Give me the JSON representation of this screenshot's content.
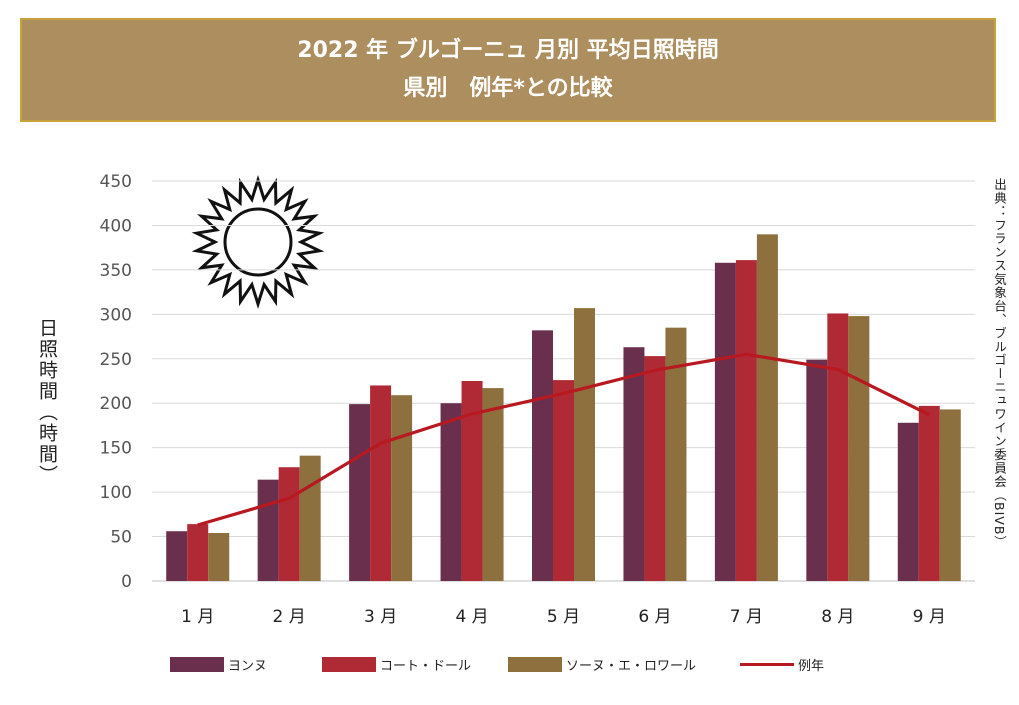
{
  "title": {
    "line1": "2022 年 ブルゴーニュ 月別 平均日照時間",
    "line2": "県別　例年*との比較"
  },
  "source": "出典：フランス気象台、ブルゴーニュワイン委員会（BIVB）",
  "sun_icon": "sun-icon",
  "chart_data": {
    "type": "bar",
    "categories": [
      "1 月",
      "2 月",
      "3 月",
      "4 月",
      "5 月",
      "6 月",
      "7 月",
      "8 月",
      "9 月"
    ],
    "ylabel": "日照時間（時間）",
    "ylim": [
      0,
      450
    ],
    "yticks": [
      0,
      50,
      100,
      150,
      200,
      250,
      300,
      350,
      400,
      450
    ],
    "grid": true,
    "legend_position": "bottom",
    "series": [
      {
        "name": "ヨンヌ",
        "type": "bar",
        "color": "#6b2f4e",
        "values": [
          56,
          114,
          199,
          200,
          282,
          263,
          358,
          249,
          178
        ]
      },
      {
        "name": "コート・ドール",
        "type": "bar",
        "color": "#b02a35",
        "values": [
          64,
          128,
          220,
          225,
          226,
          253,
          361,
          301,
          197
        ]
      },
      {
        "name": "ソーヌ・エ・ロワール",
        "type": "bar",
        "color": "#8e6f3e",
        "values": [
          54,
          141,
          209,
          217,
          307,
          285,
          390,
          298,
          193
        ]
      },
      {
        "name": "例年",
        "type": "line",
        "color": "#b8181f",
        "values": [
          63,
          93,
          155,
          188,
          211,
          237,
          255,
          238,
          187
        ]
      }
    ]
  }
}
